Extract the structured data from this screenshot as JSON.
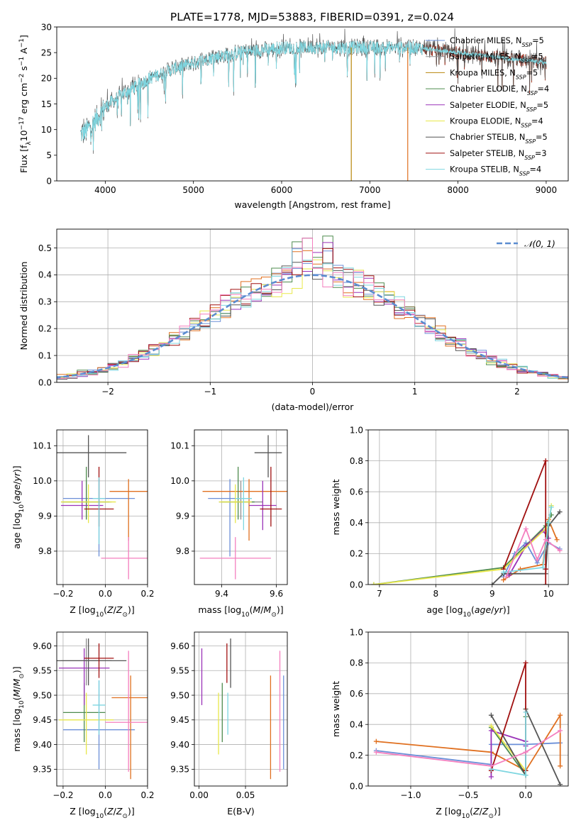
{
  "figure_title": "PLATE=1778, MJD=53883, FIBERID=0391, z=0.024",
  "legend": [
    {
      "label": "Chabrier MILES, N",
      "sub": "SSP",
      "suffix": "=5",
      "color": "#6b8fd8"
    },
    {
      "label": "Salpeter MILES, N",
      "sub": "SSP",
      "suffix": "=5",
      "color": "#909090"
    },
    {
      "label": "Kroupa MILES, N",
      "sub": "SSP",
      "suffix": "=5",
      "color": "#b8860b"
    },
    {
      "label": "Chabrier ELODIE, N",
      "sub": "SSP",
      "suffix": "=4",
      "color": "#4e8b4e"
    },
    {
      "label": "Salpeter ELODIE, N",
      "sub": "SSP",
      "suffix": "=5",
      "color": "#9a32b8"
    },
    {
      "label": "Kroupa ELODIE, N",
      "sub": "SSP",
      "suffix": "=4",
      "color": "#e8e84a"
    },
    {
      "label": "Chabrier STELIB, N",
      "sub": "SSP",
      "suffix": "=5",
      "color": "#555555"
    },
    {
      "label": "Salpeter STELIB, N",
      "sub": "SSP",
      "suffix": "=3",
      "color": "#a01010"
    },
    {
      "label": "Kroupa STELIB, N",
      "sub": "SSP",
      "suffix": "=4",
      "color": "#7ed6e0"
    }
  ],
  "chart_data": [
    {
      "id": "spectrum",
      "type": "line",
      "title": "PLATE=1778, MJD=53883, FIBERID=0391, z=0.024",
      "xlabel": "wavelength [Angstrom, rest frame]",
      "ylabel": "Flux [f",
      "ylabel_parts": [
        "Flux [f",
        "λ",
        "10",
        "−17",
        " erg cm",
        "−2",
        " s",
        "−1",
        " A",
        "−1",
        "]"
      ],
      "xlim": [
        3450,
        9250
      ],
      "ylim": [
        0,
        30
      ],
      "xticks": [
        4000,
        5000,
        6000,
        7000,
        8000,
        9000
      ],
      "yticks": [
        0,
        5,
        10,
        15,
        20,
        25,
        30
      ],
      "series_x_range": [
        3720,
        9000
      ],
      "continuum_x": [
        3720,
        3800,
        3900,
        4000,
        4200,
        4500,
        4800,
        5000,
        5200,
        5500,
        6000,
        6500,
        7000,
        7500,
        8000,
        8500,
        9000
      ],
      "continuum_y": [
        9,
        10,
        12,
        14.5,
        17,
        20,
        22,
        23,
        24,
        25,
        26,
        26,
        26,
        26,
        25,
        24,
        23
      ],
      "dropouts": [
        {
          "x": 6790,
          "color": "#b8860b"
        },
        {
          "x": 7430,
          "color": "#e07020"
        }
      ],
      "legend_loc": "upper right"
    },
    {
      "id": "residuals",
      "type": "histogram",
      "xlabel": "(data-model)/error",
      "ylabel": "Normed distribution",
      "xlim": [
        -2.5,
        2.5
      ],
      "ylim": [
        0,
        0.57
      ],
      "xticks": [
        -2,
        -1,
        0,
        1,
        2
      ],
      "yticks": [
        0.0,
        0.1,
        0.2,
        0.3,
        0.4,
        0.5
      ],
      "bin_width": 0.1,
      "legend": "𝒩(0, 1)",
      "legend_loc": "upper right",
      "reference_curve": "standard normal"
    },
    {
      "id": "age_vs_Z",
      "type": "errorbar",
      "xlabel": "Z [log10(Z/Z⊙)]",
      "ylabel": "age  [log10(age/yr)]",
      "xlim": [
        -0.23,
        0.2
      ],
      "ylim": [
        9.705,
        10.145
      ],
      "xticks": [
        -0.2,
        0.0,
        0.2
      ],
      "yticks": [
        9.8,
        9.9,
        10.0,
        10.1
      ],
      "points": [
        {
          "x": -0.03,
          "xerr": 0.17,
          "y": 9.95,
          "yerr": [
            0.165,
            0.055
          ],
          "color": "#6b8fd8"
        },
        {
          "x": -0.09,
          "xerr": 0.12,
          "y": 9.94,
          "yerr": [
            0.05,
            0.06
          ],
          "color": "#909090"
        },
        {
          "x": 0.11,
          "xerr": 0.09,
          "y": 9.97,
          "yerr": [
            0.14,
            0.035
          ],
          "color": "#e07020"
        },
        {
          "x": -0.09,
          "xerr": 0.11,
          "y": 9.94,
          "yerr": [
            0.05,
            0.1
          ],
          "color": "#4e8b4e"
        },
        {
          "x": -0.11,
          "xerr": 0.1,
          "y": 9.93,
          "yerr": [
            0.04,
            0.07
          ],
          "color": "#9a32b8"
        },
        {
          "x": -0.08,
          "xerr": 0.13,
          "y": 9.94,
          "yerr": [
            0.06,
            0.05
          ],
          "color": "#e8e84a"
        },
        {
          "x": -0.08,
          "xerr": 0.18,
          "y": 10.08,
          "yerr": [
            0.07,
            0.05
          ],
          "color": "#555555"
        },
        {
          "x": -0.03,
          "xerr": 0.07,
          "y": 9.92,
          "yerr": [
            0.05,
            0.12
          ],
          "color": "#a01010"
        },
        {
          "x": -0.03,
          "xerr": 0.03,
          "y": 9.95,
          "yerr": [
            0.13,
            0.06
          ],
          "color": "#7ed6e0"
        },
        {
          "x": 0.11,
          "xerr": 0.13,
          "y": 9.78,
          "yerr": [
            0.06,
            0.06
          ],
          "color": "#f47fbf"
        }
      ]
    },
    {
      "id": "age_vs_mass",
      "type": "errorbar",
      "xlabel": "mass [log10(M/M⊙)]",
      "ylabel": "",
      "xlim": [
        9.3,
        9.64
      ],
      "ylim": [
        9.705,
        10.145
      ],
      "xticks": [
        9.4,
        9.6
      ],
      "yticks": [
        9.8,
        9.9,
        10.0,
        10.1
      ],
      "points": [
        {
          "x": 9.43,
          "xerr": 0.08,
          "y": 9.95,
          "yerr": [
            0.165,
            0.055
          ],
          "color": "#6b8fd8"
        },
        {
          "x": 9.47,
          "xerr": 0.08,
          "y": 9.94,
          "yerr": [
            0.05,
            0.06
          ],
          "color": "#909090"
        },
        {
          "x": 9.5,
          "xerr": 0.17,
          "y": 9.97,
          "yerr": [
            0.14,
            0.035
          ],
          "color": "#e07020"
        },
        {
          "x": 9.46,
          "xerr": 0.06,
          "y": 9.94,
          "yerr": [
            0.05,
            0.1
          ],
          "color": "#4e8b4e"
        },
        {
          "x": 9.55,
          "xerr": 0.05,
          "y": 9.93,
          "yerr": [
            0.07,
            0.07
          ],
          "color": "#9a32b8"
        },
        {
          "x": 9.45,
          "xerr": 0.06,
          "y": 9.94,
          "yerr": [
            0.06,
            0.05
          ],
          "color": "#e8e84a"
        },
        {
          "x": 9.57,
          "xerr": 0.05,
          "y": 10.08,
          "yerr": [
            0.07,
            0.05
          ],
          "color": "#555555"
        },
        {
          "x": 9.58,
          "xerr": 0.04,
          "y": 9.92,
          "yerr": [
            0.05,
            0.12
          ],
          "color": "#a01010"
        },
        {
          "x": 9.48,
          "xerr": 0.03,
          "y": 9.95,
          "yerr": [
            0.09,
            0.06
          ],
          "color": "#7ed6e0"
        },
        {
          "x": 9.45,
          "xerr": 0.13,
          "y": 9.78,
          "yerr": [
            0.06,
            0.06
          ],
          "color": "#f47fbf"
        }
      ]
    },
    {
      "id": "weight_vs_age",
      "type": "line",
      "xlabel": "age  [log10(age/yr)]",
      "ylabel": "mass weight",
      "xlim": [
        6.8,
        10.35
      ],
      "ylim": [
        0,
        1.0
      ],
      "xticks": [
        7,
        8,
        9,
        10
      ],
      "yticks": [
        0.0,
        0.2,
        0.4,
        0.6,
        0.8,
        1.0
      ],
      "series": [
        {
          "color": "#6b8fd8",
          "x": [
            9.2,
            9.4,
            9.6,
            9.8,
            10.0,
            10.2
          ],
          "y": [
            0.05,
            0.2,
            0.27,
            0.14,
            0.27,
            0.23
          ]
        },
        {
          "color": "#e07020",
          "x": [
            9.2,
            9.5,
            9.9,
            10.0,
            10.15
          ],
          "y": [
            0.03,
            0.1,
            0.13,
            0.42,
            0.29
          ]
        },
        {
          "color": "#4e8b4e",
          "x": [
            6.9,
            9.2,
            9.95,
            10.05
          ],
          "y": [
            0.0,
            0.11,
            0.38,
            0.45
          ]
        },
        {
          "color": "#9a32b8",
          "x": [
            9.3,
            9.6,
            9.9,
            10.0
          ],
          "y": [
            0.06,
            0.25,
            0.35,
            0.3
          ]
        },
        {
          "color": "#e8e84a",
          "x": [
            6.9,
            9.2,
            10.0,
            10.05
          ],
          "y": [
            0.0,
            0.1,
            0.38,
            0.51
          ]
        },
        {
          "color": "#555555",
          "x": [
            9.0,
            9.2,
            9.95,
            10.0,
            10.2
          ],
          "y": [
            0.0,
            0.07,
            0.07,
            0.38,
            0.47
          ]
        },
        {
          "color": "#a01010",
          "x": [
            9.2,
            9.95,
            9.95,
            9.95
          ],
          "y": [
            0.1,
            0.8,
            0.1,
            0.0
          ]
        },
        {
          "color": "#7ed6e0",
          "x": [
            9.2,
            9.9,
            10.0,
            10.05
          ],
          "y": [
            0.08,
            0.11,
            0.4,
            0.5
          ]
        },
        {
          "color": "#f47fbf",
          "x": [
            9.25,
            9.6,
            9.8,
            9.95,
            10.2
          ],
          "y": [
            0.05,
            0.36,
            0.16,
            0.29,
            0.22
          ]
        }
      ]
    },
    {
      "id": "mass_vs_Z",
      "type": "errorbar",
      "xlabel": "Z [log10(Z/Z⊙)]",
      "ylabel": "mass [log10(M/M⊙)]",
      "xlim": [
        -0.23,
        0.2
      ],
      "ylim": [
        9.316,
        9.628
      ],
      "xticks": [
        -0.2,
        0.0,
        0.2
      ],
      "yticks": [
        9.35,
        9.4,
        9.45,
        9.5,
        9.55,
        9.6
      ],
      "points": [
        {
          "x": -0.03,
          "xerr": 0.17,
          "y": 9.43,
          "yerr": [
            0.08,
            0.1
          ],
          "color": "#6b8fd8"
        },
        {
          "x": -0.09,
          "xerr": 0.12,
          "y": 9.57,
          "yerr": [
            0.05,
            0.045
          ],
          "color": "#909090"
        },
        {
          "x": 0.12,
          "xerr": 0.09,
          "y": 9.495,
          "yerr": [
            0.165,
            0.045
          ],
          "color": "#e07020"
        },
        {
          "x": -0.1,
          "xerr": 0.1,
          "y": 9.465,
          "yerr": [
            0.06,
            0.06
          ],
          "color": "#4e8b4e"
        },
        {
          "x": -0.1,
          "xerr": 0.12,
          "y": 9.555,
          "yerr": [
            0.075,
            0.04
          ],
          "color": "#9a32b8"
        },
        {
          "x": -0.09,
          "xerr": 0.13,
          "y": 9.45,
          "yerr": [
            0.07,
            0.055
          ],
          "color": "#e8e84a"
        },
        {
          "x": -0.08,
          "xerr": 0.18,
          "y": 9.57,
          "yerr": [
            0.05,
            0.045
          ],
          "color": "#555555"
        },
        {
          "x": -0.03,
          "xerr": 0.07,
          "y": 9.575,
          "yerr": [
            0.04,
            0.03
          ],
          "color": "#a01010"
        },
        {
          "x": -0.03,
          "xerr": 0.03,
          "y": 9.48,
          "yerr": [
            0.06,
            0.05
          ],
          "color": "#7ed6e0"
        },
        {
          "x": 0.11,
          "xerr": 0.11,
          "y": 9.445,
          "yerr": [
            0.1,
            0.145
          ],
          "color": "#f47fbf"
        }
      ]
    },
    {
      "id": "mass_vs_ebv",
      "type": "errorbar",
      "xlabel": "E(B-V)",
      "ylabel": "",
      "xlim": [
        -0.005,
        0.095
      ],
      "ylim": [
        9.316,
        9.628
      ],
      "xticks": [
        0.0,
        0.05
      ],
      "yticks": [
        9.35,
        9.4,
        9.45,
        9.5,
        9.55,
        9.6
      ],
      "points": [
        {
          "x": 0.091,
          "xerr": 0,
          "y": 9.43,
          "yerr": [
            0.08,
            0.11
          ],
          "color": "#6b8fd8"
        },
        {
          "x": 0.077,
          "xerr": 0,
          "y": 9.43,
          "yerr": [
            0.1,
            0.11
          ],
          "color": "#e07020"
        },
        {
          "x": 0.025,
          "xerr": 0,
          "y": 9.465,
          "yerr": [
            0.06,
            0.06
          ],
          "color": "#4e8b4e"
        },
        {
          "x": 0.003,
          "xerr": 0,
          "y": 9.54,
          "yerr": [
            0.06,
            0.055
          ],
          "color": "#9a32b8"
        },
        {
          "x": 0.021,
          "xerr": 0,
          "y": 9.45,
          "yerr": [
            0.07,
            0.055
          ],
          "color": "#e8e84a"
        },
        {
          "x": 0.034,
          "xerr": 0,
          "y": 9.565,
          "yerr": [
            0.05,
            0.05
          ],
          "color": "#555555"
        },
        {
          "x": 0.03,
          "xerr": 0,
          "y": 9.57,
          "yerr": [
            0.045,
            0.035
          ],
          "color": "#a01010"
        },
        {
          "x": 0.031,
          "xerr": 0,
          "y": 9.455,
          "yerr": [
            0.035,
            0.05
          ],
          "color": "#7ed6e0"
        },
        {
          "x": 0.087,
          "xerr": 0,
          "y": 9.445,
          "yerr": [
            0.1,
            0.145
          ],
          "color": "#f47fbf"
        }
      ]
    },
    {
      "id": "weight_vs_Z",
      "type": "line",
      "xlabel": "Z [log10(Z/Z⊙)]",
      "ylabel": "mass weight",
      "xlim": [
        -1.37,
        0.37
      ],
      "ylim": [
        0,
        1.0
      ],
      "xticks": [
        -1.0,
        -0.5,
        0.0
      ],
      "yticks": [
        0.0,
        0.2,
        0.4,
        0.6,
        0.8,
        1.0
      ],
      "series": [
        {
          "color": "#6b8fd8",
          "x": [
            -1.3,
            -0.3,
            -0.3,
            0.0,
            0.3
          ],
          "y": [
            0.23,
            0.14,
            0.27,
            0.27,
            0.28
          ]
        },
        {
          "color": "#e07020",
          "x": [
            -1.3,
            -0.3,
            0.0,
            0.3,
            0.3
          ],
          "y": [
            0.29,
            0.22,
            0.1,
            0.46,
            0.13
          ]
        },
        {
          "color": "#4e8b4e",
          "x": [
            -0.3,
            0.0,
            0.0
          ],
          "y": [
            0.38,
            0.07,
            0.45
          ]
        },
        {
          "color": "#9a32b8",
          "x": [
            -0.3,
            -0.3,
            0.0,
            0.0
          ],
          "y": [
            0.06,
            0.36,
            0.29,
            0.26
          ]
        },
        {
          "color": "#e8e84a",
          "x": [
            -0.3,
            0.0,
            0.0
          ],
          "y": [
            0.39,
            0.1,
            0.5
          ]
        },
        {
          "color": "#555555",
          "x": [
            -0.3,
            0.0,
            0.0,
            0.3
          ],
          "y": [
            0.46,
            0.07,
            0.5,
            0.01
          ]
        },
        {
          "color": "#a01010",
          "x": [
            -0.3,
            0.0,
            0.0
          ],
          "y": [
            0.1,
            0.8,
            0.1
          ]
        },
        {
          "color": "#7ed6e0",
          "x": [
            -0.3,
            0.0,
            0.0
          ],
          "y": [
            0.11,
            0.07,
            0.48
          ]
        },
        {
          "color": "#f47fbf",
          "x": [
            -1.3,
            -0.3,
            0.0,
            0.3
          ],
          "y": [
            0.22,
            0.13,
            0.22,
            0.36
          ]
        }
      ]
    }
  ]
}
